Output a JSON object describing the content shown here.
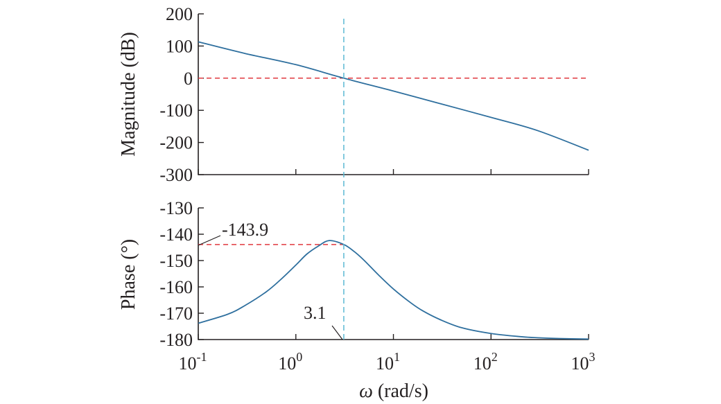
{
  "chart_data": [
    {
      "type": "line",
      "panel": "magnitude",
      "ylabel": "Magnitude (dB)",
      "xscale": "log",
      "xlim": [
        0.1,
        1000
      ],
      "ylim": [
        -300,
        200
      ],
      "yticks": [
        200,
        100,
        0,
        -100,
        -200,
        -300
      ],
      "ytick_labels": [
        "200",
        "100",
        "0",
        "-100",
        "-200",
        "-300"
      ],
      "series": [
        {
          "color": "#2e6f9e",
          "x": [
            0.1,
            0.3,
            1,
            3.1,
            10,
            30,
            100,
            300,
            1000
          ],
          "y": [
            113,
            77,
            42,
            0,
            -40,
            -79,
            -122,
            -163,
            -224
          ]
        }
      ],
      "reference_lines": [
        {
          "orientation": "horizontal",
          "y": 0,
          "color": "#e0383e",
          "style": "dashed"
        },
        {
          "orientation": "vertical",
          "x": 3.1,
          "color": "#5bb8d4",
          "style": "dashed"
        }
      ]
    },
    {
      "type": "line",
      "panel": "phase",
      "ylabel": "Phase (°)",
      "xlabel_symbol": "ω",
      "xlabel_unit": " (rad/s)",
      "xscale": "log",
      "xlim": [
        0.1,
        1000
      ],
      "ylim": [
        -180,
        -130
      ],
      "yticks": [
        -130,
        -140,
        -150,
        -160,
        -170,
        -180
      ],
      "ytick_labels": [
        "-130",
        "-140",
        "-150",
        "-160",
        "-170",
        "-180"
      ],
      "xtick_base": "10",
      "xtick_exponents": [
        "-1",
        "0",
        "1",
        "2",
        "3"
      ],
      "series": [
        {
          "color": "#2e6f9e",
          "x": [
            0.1,
            0.2,
            0.3,
            0.5,
            0.7,
            1,
            1.3,
            1.7,
            2.2,
            3.1,
            4,
            5,
            7,
            10,
            15,
            20,
            30,
            50,
            100,
            200,
            300,
            500,
            1000
          ],
          "y": [
            -173.8,
            -170.4,
            -167.1,
            -161.8,
            -157.2,
            -151.7,
            -147.5,
            -144.5,
            -142.4,
            -143.9,
            -146.7,
            -149.9,
            -155.4,
            -160.8,
            -166.0,
            -169.1,
            -172.4,
            -175.5,
            -177.7,
            -178.9,
            -179.3,
            -179.6,
            -179.8
          ]
        }
      ],
      "reference_lines": [
        {
          "orientation": "horizontal",
          "y": -143.9,
          "x_from": 0.1,
          "x_to": 3.1,
          "color": "#e0383e",
          "style": "dashed"
        },
        {
          "orientation": "vertical",
          "x": 3.1,
          "color": "#5bb8d4",
          "style": "dashed"
        }
      ],
      "annotations": [
        {
          "text": "-143.9",
          "x": 0.1,
          "y": -143.9
        },
        {
          "text": "3.1",
          "x": 3.1,
          "y": -180
        }
      ]
    }
  ]
}
